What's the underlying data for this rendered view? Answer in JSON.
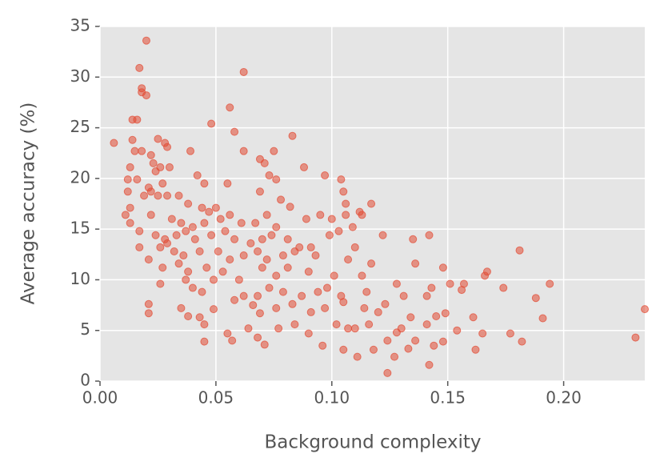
{
  "chart_data": {
    "type": "scatter",
    "x_label": "Background complexity",
    "y_label": "Average accuracy (%)",
    "color": "#E24A33",
    "grid": true,
    "xlim": [
      0,
      0.235
    ],
    "ylim": [
      0,
      35
    ],
    "xticks": [
      {
        "value": 0,
        "label": "0.00"
      },
      {
        "value": 0.05,
        "label": "0.05"
      },
      {
        "value": 0.1,
        "label": "0.10"
      },
      {
        "value": 0.15,
        "label": "0.15"
      },
      {
        "value": 0.2,
        "label": "0.20"
      }
    ],
    "yticks": [
      0,
      5,
      10,
      15,
      20,
      25,
      30,
      35
    ],
    "x": [
      0.02,
      0.017,
      0.018,
      0.018,
      0.02,
      0.062,
      0.056,
      0.014,
      0.016,
      0.048,
      0.058,
      0.083,
      0.006,
      0.014,
      0.025,
      0.028,
      0.029,
      0.015,
      0.018,
      0.022,
      0.039,
      0.062,
      0.075,
      0.069,
      0.071,
      0.088,
      0.013,
      0.023,
      0.026,
      0.03,
      0.012,
      0.016,
      0.024,
      0.042,
      0.073,
      0.097,
      0.104,
      0.076,
      0.055,
      0.045,
      0.021,
      0.027,
      0.012,
      0.019,
      0.022,
      0.025,
      0.029,
      0.034,
      0.038,
      0.044,
      0.047,
      0.05,
      0.069,
      0.078,
      0.082,
      0.105,
      0.106,
      0.117,
      0.011,
      0.013,
      0.022,
      0.031,
      0.035,
      0.04,
      0.045,
      0.052,
      0.056,
      0.061,
      0.067,
      0.072,
      0.076,
      0.089,
      0.095,
      0.1,
      0.106,
      0.112,
      0.113,
      0.109,
      0.013,
      0.017,
      0.024,
      0.028,
      0.033,
      0.037,
      0.041,
      0.048,
      0.054,
      0.058,
      0.065,
      0.07,
      0.074,
      0.081,
      0.086,
      0.091,
      0.099,
      0.103,
      0.11,
      0.122,
      0.135,
      0.142,
      0.017,
      0.026,
      0.029,
      0.032,
      0.036,
      0.043,
      0.051,
      0.056,
      0.062,
      0.068,
      0.072,
      0.079,
      0.084,
      0.093,
      0.107,
      0.117,
      0.136,
      0.148,
      0.021,
      0.027,
      0.034,
      0.038,
      0.046,
      0.053,
      0.06,
      0.07,
      0.076,
      0.081,
      0.09,
      0.101,
      0.113,
      0.128,
      0.143,
      0.151,
      0.157,
      0.167,
      0.174,
      0.194,
      0.026,
      0.037,
      0.04,
      0.044,
      0.049,
      0.062,
      0.068,
      0.073,
      0.079,
      0.087,
      0.094,
      0.098,
      0.104,
      0.115,
      0.123,
      0.131,
      0.141,
      0.156,
      0.181,
      0.166,
      0.021,
      0.021,
      0.035,
      0.038,
      0.043,
      0.049,
      0.058,
      0.066,
      0.069,
      0.076,
      0.083,
      0.091,
      0.097,
      0.105,
      0.114,
      0.12,
      0.134,
      0.145,
      0.149,
      0.161,
      0.188,
      0.191,
      0.045,
      0.055,
      0.057,
      0.064,
      0.068,
      0.071,
      0.077,
      0.084,
      0.09,
      0.096,
      0.102,
      0.107,
      0.11,
      0.116,
      0.124,
      0.128,
      0.13,
      0.133,
      0.136,
      0.141,
      0.144,
      0.148,
      0.154,
      0.162,
      0.165,
      0.177,
      0.182,
      0.045,
      0.105,
      0.111,
      0.118,
      0.127,
      0.142,
      0.124,
      0.231,
      0.235
    ],
    "values": [
      33.6,
      30.9,
      28.9,
      28.5,
      28.2,
      30.5,
      27.0,
      25.8,
      25.8,
      25.4,
      24.6,
      24.2,
      23.5,
      23.8,
      23.9,
      23.5,
      23.1,
      22.7,
      22.7,
      22.3,
      22.7,
      22.7,
      22.7,
      21.9,
      21.5,
      21.1,
      21.1,
      21.5,
      21.1,
      21.1,
      19.9,
      19.9,
      20.7,
      20.3,
      20.3,
      20.3,
      19.9,
      19.9,
      19.5,
      19.5,
      19.1,
      19.5,
      18.7,
      18.3,
      18.7,
      18.3,
      18.3,
      18.3,
      17.5,
      17.1,
      16.7,
      17.1,
      18.7,
      17.9,
      17.2,
      18.7,
      17.5,
      17.5,
      16.4,
      17.1,
      16.4,
      16.0,
      15.6,
      15.2,
      15.6,
      16.0,
      16.4,
      15.6,
      15.6,
      16.4,
      15.2,
      16.0,
      16.4,
      16.0,
      16.4,
      16.7,
      16.4,
      15.2,
      15.6,
      14.8,
      14.4,
      14.0,
      14.4,
      14.8,
      14.0,
      14.4,
      14.8,
      14.0,
      13.6,
      14.0,
      14.4,
      14.0,
      13.2,
      13.2,
      14.4,
      14.8,
      13.2,
      14.4,
      14.0,
      14.4,
      13.2,
      13.2,
      13.6,
      12.8,
      12.4,
      12.8,
      12.8,
      12.0,
      12.4,
      12.8,
      12.0,
      12.4,
      12.8,
      12.4,
      12.0,
      11.6,
      11.6,
      11.2,
      12.0,
      11.2,
      11.6,
      10.8,
      11.2,
      10.8,
      10.0,
      11.2,
      10.4,
      11.2,
      10.8,
      10.4,
      10.4,
      9.6,
      9.2,
      9.6,
      9.6,
      10.8,
      9.2,
      9.6,
      9.6,
      10.0,
      9.2,
      8.8,
      10.0,
      8.4,
      8.4,
      9.2,
      8.8,
      8.4,
      8.8,
      9.2,
      8.4,
      8.8,
      7.6,
      8.4,
      8.4,
      9.0,
      12.9,
      10.4,
      7.6,
      6.7,
      7.2,
      6.4,
      6.3,
      7.1,
      8.0,
      7.5,
      6.7,
      7.2,
      7.6,
      6.8,
      7.2,
      7.8,
      7.2,
      6.8,
      6.3,
      6.4,
      6.7,
      6.3,
      8.2,
      6.2,
      5.6,
      4.7,
      4.0,
      5.2,
      4.3,
      3.6,
      5.2,
      5.6,
      4.7,
      3.5,
      5.6,
      5.2,
      5.2,
      5.6,
      4.0,
      4.8,
      5.2,
      3.2,
      4.0,
      5.6,
      3.5,
      3.9,
      5.0,
      3.1,
      4.7,
      4.7,
      3.9,
      3.9,
      3.1,
      2.4,
      3.1,
      2.4,
      1.6,
      0.8,
      4.3,
      7.1
    ]
  }
}
